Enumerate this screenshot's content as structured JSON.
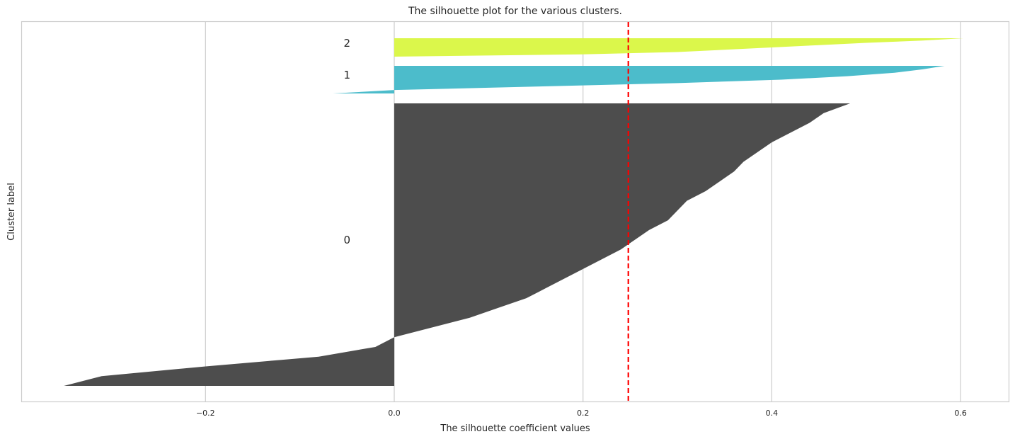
{
  "chart_data": {
    "type": "area",
    "title": "The silhouette plot for the various clusters.",
    "xlabel": "The silhouette coefficient values",
    "ylabel": "Cluster label",
    "xlim": [
      -0.2,
      0.65
    ],
    "xticks": [
      -0.2,
      0.0,
      0.2,
      0.4,
      0.6
    ],
    "xtick_labels": [
      "−0.2",
      "0.0",
      "0.2",
      "0.4",
      "0.6"
    ],
    "grid": true,
    "average_silhouette_score": 0.248,
    "average_line_color": "#ff0000",
    "clusters": [
      {
        "label": "0",
        "color": "#4d4d4d",
        "sorted_values_descending": [
          0.483,
          0.455,
          0.44,
          0.42,
          0.4,
          0.385,
          0.37,
          0.36,
          0.345,
          0.33,
          0.31,
          0.3,
          0.29,
          0.27,
          0.255,
          0.24,
          0.22,
          0.2,
          0.18,
          0.16,
          0.14,
          0.11,
          0.08,
          0.04,
          0.0,
          -0.02,
          -0.08,
          -0.2,
          -0.31,
          -0.35
        ]
      },
      {
        "label": "1",
        "color": "#4cbccb",
        "sorted_values_descending": [
          0.583,
          0.56,
          0.53,
          0.48,
          0.41,
          0.3,
          0.15,
          0.0,
          -0.065
        ]
      },
      {
        "label": "2",
        "color": "#dbf74b",
        "sorted_values_descending": [
          0.603,
          0.56,
          0.5,
          0.45,
          0.4,
          0.35,
          0.3,
          0.2,
          0.0
        ]
      }
    ]
  }
}
